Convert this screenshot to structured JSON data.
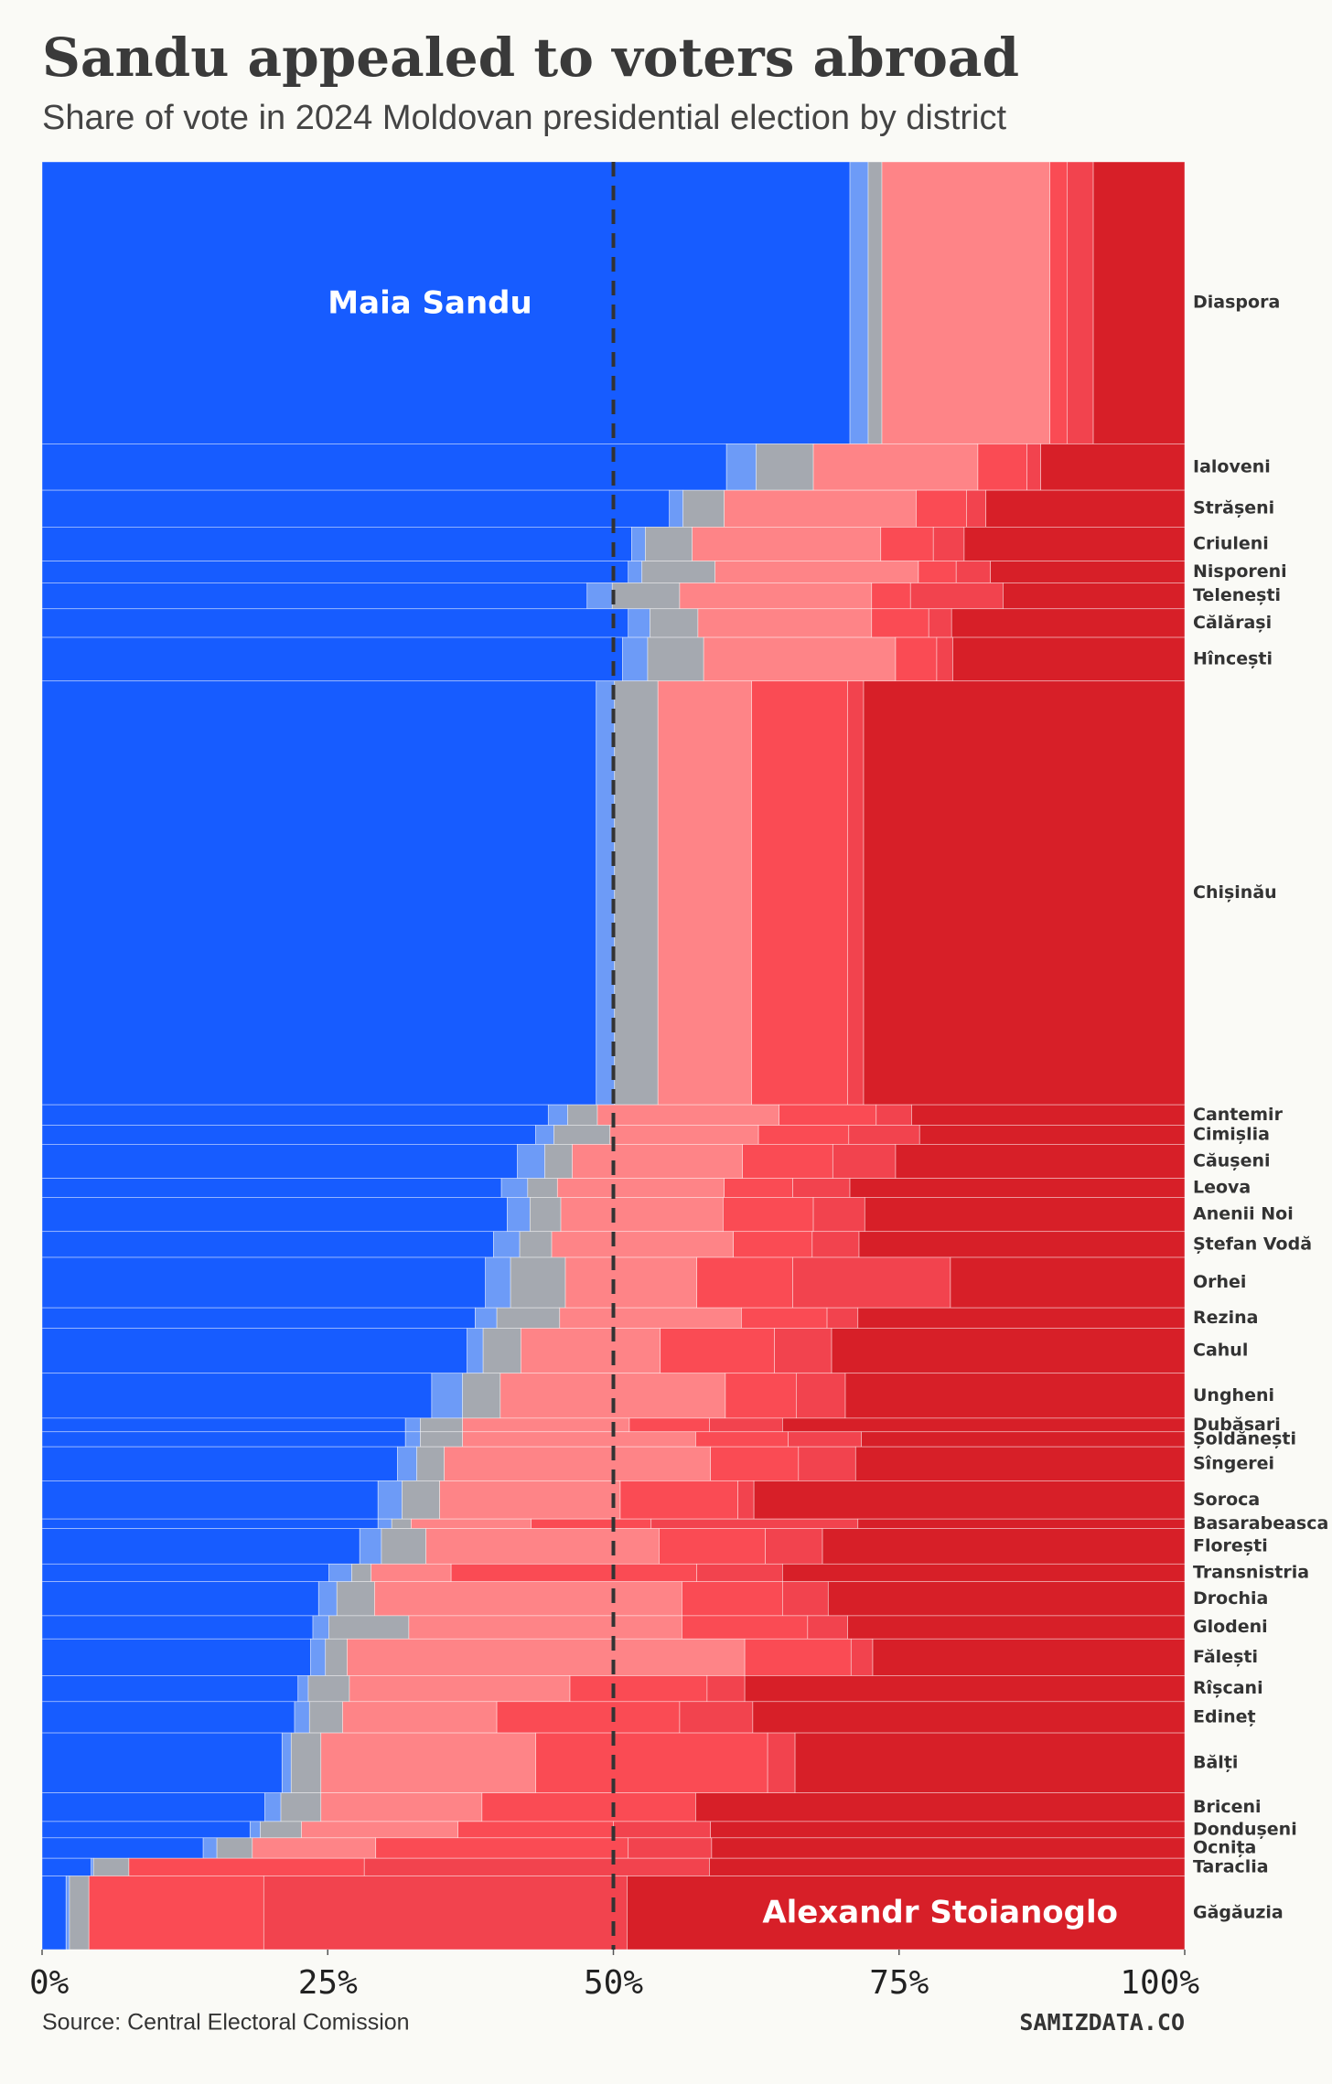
{
  "chart_data": {
    "type": "marimekko",
    "title": "Sandu appealed to voters abroad",
    "subtitle": "Share of vote in 2024 Moldovan presidential election by district",
    "source": "Source: Central Electoral Comission",
    "brand": "SAMIZDATA.CO",
    "annotations": [
      {
        "text": "Maia Sandu"
      },
      {
        "text": "Alexandr Stoianoglo"
      }
    ],
    "categories": [
      "Diaspora",
      "Ialoveni",
      "Strășeni",
      "Criuleni",
      "Nisporeni",
      "Telenești",
      "Călărași",
      "Hîncești",
      "Chișinău",
      "Cantemir",
      "Cimișlia",
      "Căușeni",
      "Leova",
      "Anenii Noi",
      "Ștefan Vodă",
      "Orhei",
      "Rezina",
      "Cahul",
      "Ungheni",
      "Dubăsari",
      "Șoldănești",
      "Sîngerei",
      "Soroca",
      "Basarabeasca",
      "Florești",
      "Transnistria",
      "Drochia",
      "Glodeni",
      "Fălești",
      "Rîșcani",
      "Edineț",
      "Bălți",
      "Briceni",
      "Dondușeni",
      "Ocnița",
      "Taraclia",
      "Găgăuzia"
    ],
    "weights": [
      207,
      34,
      27,
      25,
      16,
      19,
      21,
      32,
      311,
      15,
      14,
      25,
      14,
      25,
      19,
      37,
      15,
      33,
      33,
      10,
      11,
      25,
      28,
      7,
      26,
      13,
      25,
      17,
      27,
      19,
      23,
      44,
      21,
      12,
      15,
      13,
      54
    ],
    "series": [
      {
        "color": "#175cff",
        "values": [
          70.7,
          59.9,
          54.9,
          51.6,
          51.3,
          47.7,
          51.3,
          50.8,
          48.5,
          44.3,
          43.2,
          41.6,
          40.2,
          40.7,
          39.5,
          38.8,
          37.9,
          37.2,
          34.1,
          31.8,
          31.8,
          31.1,
          29.4,
          29.4,
          27.8,
          25.1,
          24.2,
          23.7,
          23.5,
          22.4,
          22.1,
          21.0,
          19.5,
          18.2,
          14.1,
          4.3,
          2.1
        ]
      },
      {
        "color": "#6d9bf7",
        "values": [
          1.6,
          2.6,
          1.2,
          1.2,
          1.2,
          2.2,
          1.9,
          2.2,
          1.6,
          1.7,
          1.6,
          2.4,
          2.3,
          2.0,
          2.3,
          2.2,
          1.9,
          1.4,
          2.7,
          1.3,
          1.3,
          1.7,
          2.1,
          1.2,
          1.9,
          2.0,
          1.6,
          1.4,
          1.3,
          0.9,
          1.3,
          0.8,
          1.4,
          0.9,
          1.2,
          0.2,
          0.3
        ]
      },
      {
        "color": "#a5a9b0",
        "values": [
          1.2,
          5.0,
          3.6,
          4.1,
          6.4,
          5.9,
          4.2,
          4.9,
          3.8,
          2.6,
          4.9,
          2.4,
          2.6,
          2.7,
          2.8,
          4.8,
          5.5,
          3.3,
          3.3,
          3.7,
          3.7,
          2.4,
          3.3,
          1.7,
          3.9,
          1.7,
          3.3,
          7.0,
          1.9,
          3.6,
          2.9,
          2.6,
          3.5,
          3.6,
          3.1,
          3.1,
          1.7
        ]
      },
      {
        "color": "#fe8487",
        "values": [
          14.7,
          14.4,
          16.8,
          16.5,
          17.8,
          16.8,
          15.2,
          16.8,
          8.2,
          15.9,
          13.0,
          14.9,
          14.6,
          14.2,
          15.9,
          11.5,
          15.9,
          12.2,
          19.7,
          14.6,
          20.4,
          23.3,
          15.8,
          10.5,
          20.4,
          7.0,
          26.9,
          23.9,
          34.8,
          19.3,
          13.5,
          18.8,
          14.1,
          13.7,
          10.8,
          0,
          0
        ]
      },
      {
        "color": "#fa4b54",
        "values": [
          1.5,
          4.3,
          4.4,
          4.6,
          3.3,
          3.4,
          5.0,
          3.6,
          8.4,
          8.5,
          7.9,
          7.9,
          6.0,
          7.9,
          6.9,
          8.4,
          7.5,
          10.0,
          6.2,
          7.0,
          8.1,
          7.7,
          10.3,
          10.5,
          9.3,
          21.5,
          8.8,
          11.0,
          9.3,
          12.0,
          16.0,
          20.3,
          18.7,
          13.6,
          22.1,
          20.6,
          15.3
        ]
      },
      {
        "color": "#f2434e",
        "values": [
          2.3,
          1.2,
          1.7,
          2.7,
          3.0,
          8.1,
          2.0,
          1.4,
          1.4,
          3.1,
          6.2,
          5.5,
          5.0,
          4.5,
          4.1,
          13.8,
          2.7,
          5.0,
          4.3,
          6.4,
          6.4,
          5.0,
          1.4,
          18.1,
          5.0,
          7.5,
          4.0,
          3.5,
          1.9,
          3.3,
          6.4,
          2.4,
          0,
          8.5,
          7.3,
          30.2,
          31.8
        ]
      },
      {
        "color": "#d71f28",
        "values": [
          8.0,
          12.6,
          17.4,
          19.3,
          17.0,
          15.9,
          20.4,
          20.3,
          28.1,
          23.9,
          23.2,
          25.3,
          29.3,
          28.0,
          28.5,
          20.5,
          28.6,
          30.9,
          29.7,
          35.2,
          28.3,
          28.8,
          37.7,
          28.6,
          31.7,
          35.2,
          31.2,
          29.5,
          27.3,
          38.5,
          37.8,
          34.1,
          42.8,
          41.5,
          41.4,
          41.6,
          48.8
        ]
      }
    ],
    "xlim": [
      0,
      100
    ],
    "xticks": [
      {
        "value": 0,
        "label": "0%"
      },
      {
        "value": 25,
        "label": "25%"
      },
      {
        "value": 50,
        "label": "50%"
      },
      {
        "value": 75,
        "label": "75%"
      },
      {
        "value": 100,
        "label": "100%"
      }
    ],
    "reference_line": 50
  }
}
